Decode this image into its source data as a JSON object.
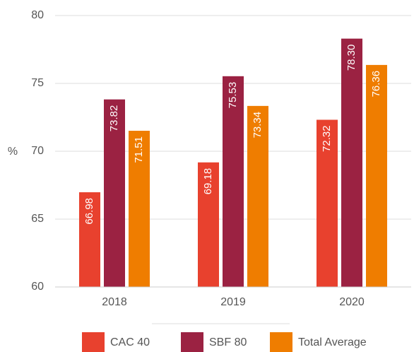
{
  "chart_data": {
    "type": "bar",
    "ylabel": "%",
    "categories": [
      "2018",
      "2019",
      "2020"
    ],
    "series": [
      {
        "name": "CAC 40",
        "color": "#e8412e",
        "values": [
          66.98,
          69.18,
          72.32
        ],
        "value_labels": [
          "66.98",
          "69.18",
          "72.32"
        ]
      },
      {
        "name": "SBF 80",
        "color": "#9b2242",
        "values": [
          73.82,
          75.53,
          78.3
        ],
        "value_labels": [
          "73.82",
          "75.53",
          "78.30"
        ]
      },
      {
        "name": "Total Average",
        "color": "#ef7d00",
        "values": [
          71.51,
          73.34,
          76.36
        ],
        "value_labels": [
          "71.51",
          "73.34",
          "76.36"
        ]
      }
    ],
    "ylim": [
      60,
      80
    ],
    "yticks": [
      60,
      65,
      70,
      75,
      80
    ],
    "grid": true,
    "legend": "bottom"
  }
}
